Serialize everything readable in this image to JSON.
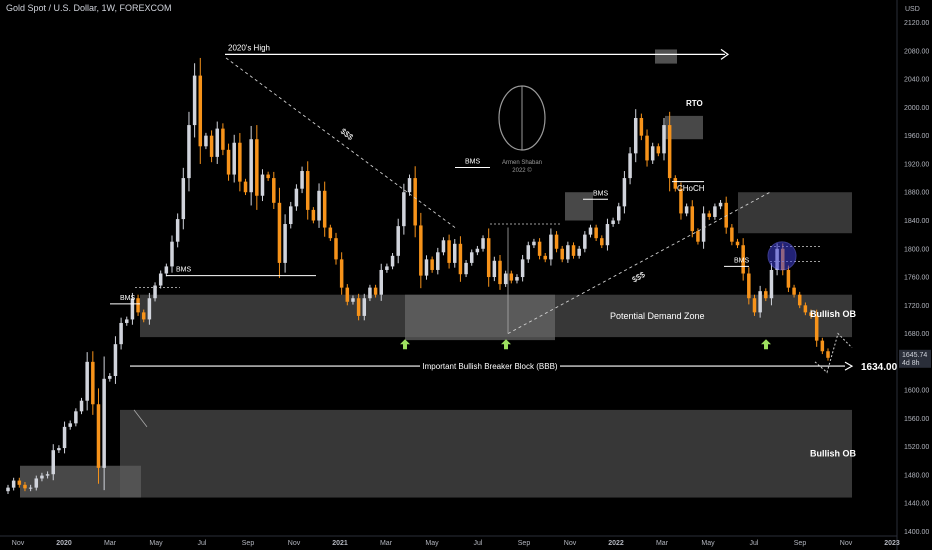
{
  "header": {
    "title": "Gold Spot / U.S. Dollar, 1W, FOREXCOM",
    "currency": "USD"
  },
  "chart_data": {
    "type": "candlestick",
    "ylim": [
      1395,
      2135
    ],
    "y_ticks": [
      1400,
      1440,
      1480,
      1520,
      1560,
      1600,
      1640,
      1680,
      1720,
      1760,
      1800,
      1840,
      1880,
      1920,
      1960,
      2000,
      2040,
      2080,
      2120
    ],
    "x_ticks": [
      "Nov",
      "2020",
      "Mar",
      "May",
      "Jul",
      "Sep",
      "Nov",
      "2021",
      "Mar",
      "May",
      "Jul",
      "Sep",
      "Nov",
      "2022",
      "Mar",
      "May",
      "Jul",
      "Sep",
      "Nov",
      "2023"
    ],
    "last_price": "1645.74",
    "countdown": "4d 8h",
    "level_label": "1634.00",
    "colors": {
      "up": "#d1d4dc",
      "down": "#f7931a",
      "zone": "#4a4a4a",
      "text": "#ffffff",
      "axis": "#b2b5be",
      "circle": "#3f3fd6"
    },
    "annotations": {
      "high_2020": "2020's High",
      "liquidity_1": "$$$",
      "liquidity_2": "$$$",
      "bms_1": "BMS",
      "bms_2": "BMS",
      "bms_3": "BMS",
      "bms_4": "BMS",
      "bms_5": "BMS",
      "rto": "RTO",
      "choch": "CHoCH",
      "demand_zone": "Potential Demand Zone",
      "bullish_ob_1": "Bullish OB",
      "bullish_ob_2": "Bullish OB",
      "breaker": "Important Bullish Breaker Block (BBB)"
    },
    "watermark": {
      "line1": "Armen Shaban",
      "line2": "2022 ©"
    },
    "candles": [
      [
        1457,
        1462
      ],
      [
        1462,
        1472
      ],
      [
        1472,
        1466
      ],
      [
        1466,
        1461
      ],
      [
        1461,
        1462
      ],
      [
        1462,
        1475
      ],
      [
        1475,
        1479
      ],
      [
        1479,
        1481
      ],
      [
        1481,
        1515
      ],
      [
        1515,
        1518
      ],
      [
        1518,
        1548
      ],
      [
        1548,
        1553
      ],
      [
        1553,
        1570
      ],
      [
        1570,
        1585
      ],
      [
        1585,
        1640
      ],
      [
        1640,
        1580
      ],
      [
        1580,
        1490
      ],
      [
        1490,
        1616
      ],
      [
        1616,
        1620
      ],
      [
        1620,
        1665
      ],
      [
        1665,
        1695
      ],
      [
        1695,
        1700
      ],
      [
        1700,
        1730
      ],
      [
        1730,
        1710
      ],
      [
        1710,
        1700
      ],
      [
        1700,
        1730
      ],
      [
        1730,
        1748
      ],
      [
        1748,
        1765
      ],
      [
        1765,
        1775
      ],
      [
        1775,
        1810
      ],
      [
        1810,
        1842
      ],
      [
        1842,
        1900
      ],
      [
        1900,
        1975
      ],
      [
        1975,
        2045
      ],
      [
        2045,
        1945
      ],
      [
        1945,
        1960
      ],
      [
        1960,
        1930
      ],
      [
        1930,
        1970
      ],
      [
        1970,
        1940
      ],
      [
        1940,
        1905
      ],
      [
        1905,
        1950
      ],
      [
        1950,
        1895
      ],
      [
        1895,
        1880
      ],
      [
        1880,
        1955
      ],
      [
        1955,
        1875
      ],
      [
        1875,
        1905
      ],
      [
        1905,
        1900
      ],
      [
        1900,
        1865
      ],
      [
        1865,
        1780
      ],
      [
        1780,
        1835
      ],
      [
        1835,
        1860
      ],
      [
        1860,
        1885
      ],
      [
        1885,
        1910
      ],
      [
        1910,
        1855
      ],
      [
        1855,
        1840
      ],
      [
        1840,
        1882
      ],
      [
        1882,
        1830
      ],
      [
        1830,
        1815
      ],
      [
        1815,
        1785
      ],
      [
        1785,
        1745
      ],
      [
        1745,
        1725
      ],
      [
        1725,
        1730
      ],
      [
        1730,
        1705
      ],
      [
        1705,
        1730
      ],
      [
        1730,
        1745
      ],
      [
        1745,
        1735
      ],
      [
        1735,
        1770
      ],
      [
        1770,
        1775
      ],
      [
        1775,
        1790
      ],
      [
        1790,
        1832
      ],
      [
        1832,
        1880
      ],
      [
        1880,
        1900
      ],
      [
        1900,
        1833
      ],
      [
        1833,
        1762
      ],
      [
        1762,
        1785
      ],
      [
        1785,
        1770
      ],
      [
        1770,
        1795
      ],
      [
        1795,
        1812
      ],
      [
        1812,
        1780
      ],
      [
        1780,
        1807
      ],
      [
        1807,
        1764
      ],
      [
        1764,
        1780
      ],
      [
        1780,
        1795
      ],
      [
        1795,
        1800
      ],
      [
        1800,
        1815
      ],
      [
        1815,
        1760
      ],
      [
        1760,
        1783
      ],
      [
        1783,
        1750
      ],
      [
        1750,
        1765
      ],
      [
        1765,
        1755
      ],
      [
        1755,
        1760
      ],
      [
        1760,
        1785
      ],
      [
        1785,
        1805
      ],
      [
        1805,
        1810
      ],
      [
        1810,
        1790
      ],
      [
        1790,
        1785
      ],
      [
        1785,
        1820
      ],
      [
        1820,
        1800
      ],
      [
        1800,
        1785
      ],
      [
        1785,
        1805
      ],
      [
        1805,
        1790
      ],
      [
        1790,
        1800
      ],
      [
        1800,
        1820
      ],
      [
        1820,
        1830
      ],
      [
        1830,
        1815
      ],
      [
        1815,
        1805
      ],
      [
        1805,
        1835
      ],
      [
        1835,
        1840
      ],
      [
        1840,
        1860
      ],
      [
        1860,
        1900
      ],
      [
        1900,
        1935
      ],
      [
        1935,
        1985
      ],
      [
        1985,
        1960
      ],
      [
        1960,
        1925
      ],
      [
        1925,
        1945
      ],
      [
        1945,
        1935
      ],
      [
        1935,
        1975
      ],
      [
        1975,
        1900
      ],
      [
        1900,
        1885
      ],
      [
        1885,
        1850
      ],
      [
        1850,
        1860
      ],
      [
        1860,
        1825
      ],
      [
        1825,
        1810
      ],
      [
        1810,
        1850
      ],
      [
        1850,
        1845
      ],
      [
        1845,
        1860
      ],
      [
        1860,
        1865
      ],
      [
        1865,
        1830
      ],
      [
        1830,
        1810
      ],
      [
        1810,
        1805
      ],
      [
        1805,
        1765
      ],
      [
        1765,
        1730
      ],
      [
        1730,
        1710
      ],
      [
        1710,
        1740
      ],
      [
        1740,
        1730
      ],
      [
        1730,
        1770
      ],
      [
        1770,
        1800
      ],
      [
        1800,
        1770
      ],
      [
        1770,
        1745
      ],
      [
        1745,
        1735
      ],
      [
        1735,
        1720
      ],
      [
        1720,
        1710
      ],
      [
        1710,
        1705
      ],
      [
        1705,
        1670
      ],
      [
        1670,
        1655
      ],
      [
        1655,
        1645.74
      ]
    ],
    "levels": {
      "breaker": 1634.0,
      "high_2020": 2075
    },
    "zones": [
      {
        "from": 1675,
        "to": 1735
      },
      {
        "from": 1448,
        "to": 1572
      },
      {
        "from": 1822,
        "to": 1880
      }
    ]
  }
}
